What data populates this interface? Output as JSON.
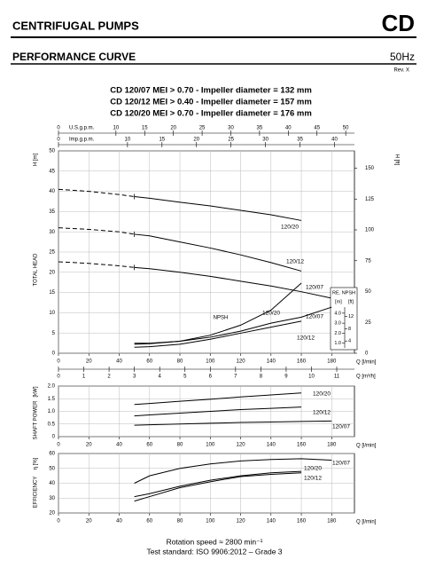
{
  "header": {
    "title": "CENTRIFUGAL PUMPS",
    "code": "CD",
    "subtitle": "PERFORMANCE CURVE",
    "frequency": "50Hz",
    "revision": "Rev. X",
    "models": [
      "CD 120/07 MEI > 0.70 - Impeller diameter = 132 mm",
      "CD 120/12 MEI > 0.40 - Impeller diameter = 157 mm",
      "CD 120/20 MEI > 0.70 - Impeller diameter = 176 mm"
    ]
  },
  "footer": [
    "Rotation speed ≈ 2800 min⁻¹",
    "Test standard: ISO 9906:2012 – Grade 3"
  ],
  "chart_data": [
    {
      "type": "line",
      "ytitle": "TOTAL HEAD",
      "ylabel": "H [m]",
      "y2label": "H [ft]",
      "xlabel": "Q [l/min]",
      "grid": true,
      "dashed_to": 50,
      "xlim": [
        0,
        195
      ],
      "xticks": [
        0,
        20,
        40,
        60,
        80,
        100,
        120,
        140,
        160,
        180
      ],
      "ylim": [
        0,
        50
      ],
      "yticks": [
        0,
        5,
        10,
        15,
        20,
        25,
        30,
        35,
        40,
        45,
        50
      ],
      "y2lim": [
        0,
        164.04
      ],
      "y2ticks": [
        0,
        25,
        50,
        75,
        100,
        125,
        150
      ],
      "top_axes": [
        {
          "label": "U.S.g.p.m.",
          "lim": [
            0,
            51.52
          ],
          "ticks": [
            0,
            10,
            15,
            20,
            25,
            30,
            35,
            40,
            45,
            50
          ]
        },
        {
          "label": "Imp.g.p.m.",
          "lim": [
            0,
            42.89
          ],
          "ticks": [
            0,
            10,
            15,
            20,
            25,
            30,
            35,
            40
          ]
        }
      ],
      "bottom_axis": {
        "label": "Q [m³/h]",
        "lim": [
          0,
          11.7
        ],
        "ticks": [
          0,
          1,
          2,
          3,
          4,
          5,
          6,
          7,
          8,
          9,
          10,
          11
        ]
      },
      "x": [
        0,
        20,
        40,
        50,
        60,
        80,
        100,
        120,
        140,
        160,
        180
      ],
      "series": [
        {
          "name": "120/20",
          "color": "#000000",
          "values": [
            40.5,
            40,
            39.2,
            38.7,
            38.3,
            37.3,
            36.4,
            35.3,
            34.2,
            32.8,
            null
          ]
        },
        {
          "name": "120/12",
          "color": "#000000",
          "values": [
            31,
            30.6,
            30,
            29.4,
            29,
            27.5,
            26,
            24.3,
            22.4,
            20.3,
            null
          ]
        },
        {
          "name": "120/07",
          "color": "#000000",
          "values": [
            22.6,
            22.2,
            21.6,
            21.2,
            20.9,
            20,
            19,
            17.8,
            16.6,
            15.2,
            13.6
          ]
        }
      ]
    },
    {
      "type": "line",
      "inset": true,
      "label": "NPSH",
      "ytitle": "RE. NPSH",
      "ylabel": "[m]",
      "y2label": "[ft]",
      "xlim": [
        0,
        195
      ],
      "ylim": [
        0,
        20.2
      ],
      "yticks": [
        {
          "value": 1,
          "label": "1.0"
        },
        {
          "value": 2,
          "label": "2.0"
        },
        {
          "value": 3,
          "label": "3.0"
        },
        {
          "value": 4,
          "label": "4.0"
        }
      ],
      "y2lim": [
        0,
        66.27
      ],
      "y2ticks": [
        4,
        8,
        12
      ],
      "x": [
        50,
        60,
        80,
        100,
        120,
        140,
        160,
        180
      ],
      "series": [
        {
          "name": "120/20",
          "color": "#000000",
          "values": [
            0.9,
            0.95,
            1.2,
            1.8,
            2.8,
            4.3,
            7.0,
            null
          ]
        },
        {
          "name": "120/07",
          "color": "#000000",
          "values": [
            1.0,
            1.0,
            1.2,
            1.6,
            2.2,
            3.0,
            3.6,
            4.6
          ]
        },
        {
          "name": "120/12",
          "color": "#000000",
          "values": [
            0.6,
            0.65,
            0.9,
            1.4,
            2.0,
            2.6,
            3.2,
            null
          ]
        }
      ]
    },
    {
      "type": "line",
      "ytitle": "SHAFT POWER",
      "ylabel": "[kW]",
      "xlabel": "Q [l/min]",
      "grid": true,
      "xlim": [
        0,
        195
      ],
      "xticks": [
        0,
        20,
        40,
        60,
        80,
        100,
        120,
        140,
        160,
        180
      ],
      "ylim": [
        0,
        2
      ],
      "yticks": [
        0,
        0.5,
        {
          "value": 1,
          "label": "1.0"
        },
        1.5,
        {
          "value": 2,
          "label": "2.0"
        }
      ],
      "x": [
        50,
        60,
        80,
        100,
        120,
        140,
        160,
        180
      ],
      "series": [
        {
          "name": "120/20",
          "color": "#000000",
          "values": [
            1.27,
            1.31,
            1.4,
            1.48,
            1.57,
            1.65,
            1.73,
            null
          ]
        },
        {
          "name": "120/12",
          "color": "#000000",
          "values": [
            0.82,
            0.86,
            0.93,
            1.0,
            1.07,
            1.12,
            1.17,
            null
          ]
        },
        {
          "name": "120/07",
          "color": "#000000",
          "values": [
            0.45,
            0.47,
            0.5,
            0.53,
            0.56,
            0.58,
            0.6,
            0.62
          ]
        }
      ]
    },
    {
      "type": "line",
      "ytitle": "EFFICIENCY",
      "ylabel": "η [%]",
      "xlabel": "Q [l/min]",
      "grid": true,
      "xlim": [
        0,
        195
      ],
      "xticks": [
        0,
        20,
        40,
        60,
        80,
        100,
        120,
        140,
        160,
        180
      ],
      "ylim": [
        20,
        60
      ],
      "yticks": [
        20,
        30,
        40,
        50,
        60
      ],
      "x": [
        50,
        60,
        80,
        100,
        120,
        140,
        160,
        180
      ],
      "series": [
        {
          "name": "120/07",
          "color": "#000000",
          "values": [
            40,
            45,
            50,
            53,
            55,
            56,
            56.5,
            55.5
          ]
        },
        {
          "name": "120/20",
          "color": "#000000",
          "values": [
            31,
            33,
            38,
            42,
            45,
            47,
            48,
            null
          ]
        },
        {
          "name": "120/12",
          "color": "#000000",
          "values": [
            28,
            31,
            37,
            41,
            44.5,
            46,
            47,
            null
          ]
        }
      ]
    }
  ]
}
